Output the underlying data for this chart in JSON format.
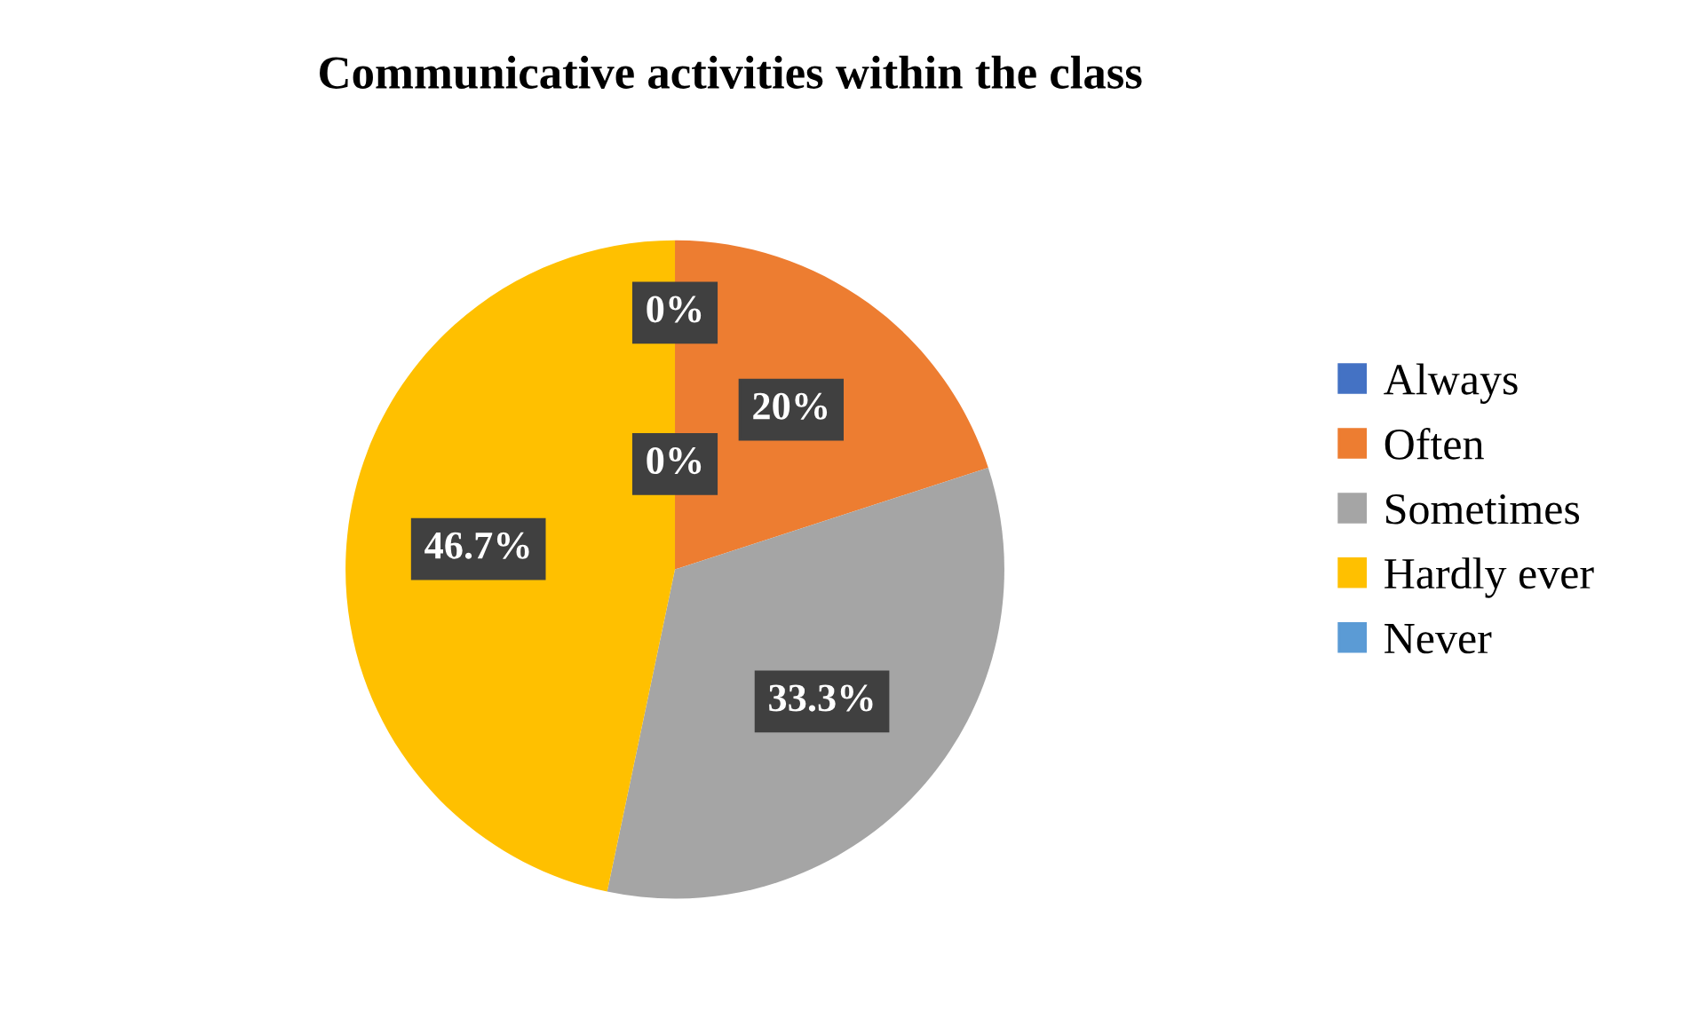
{
  "chart_data": {
    "type": "pie",
    "title": "Communicative activities within the class",
    "categories": [
      "Always",
      "Often",
      "Sometimes",
      "Hardly ever",
      "Never"
    ],
    "values": [
      0,
      20,
      33.3,
      46.7,
      0
    ],
    "colors": [
      "#4472c4",
      "#ed7d31",
      "#a5a5a5",
      "#ffc000",
      "#5b9bd5"
    ],
    "value_labels": [
      "0%",
      "20%",
      "33.3%",
      "46.7%",
      "0%"
    ],
    "legend": "right"
  }
}
